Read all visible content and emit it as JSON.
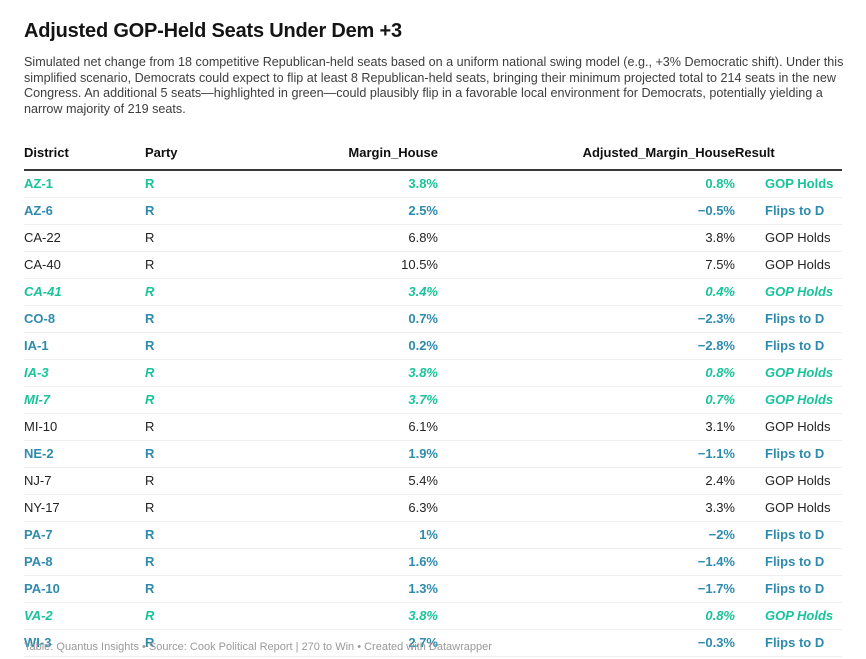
{
  "header": {
    "title": "Adjusted GOP-Held Seats Under Dem +3",
    "description": "Simulated net change from 18 competitive Republican-held seats based on a uniform national swing model (e.g., +3% Democratic shift). Under this simplified scenario, Democrats could expect to flip at least 8 Republican-held seats, bringing their minimum projected total to 214 seats in the new Congress. An additional 5 seats—highlighted in green—could plausibly flip in a favorable local environment for Democrats, potentially yielding a narrow majority of 219 seats."
  },
  "colors": {
    "green": "#18c39b",
    "blue": "#2e8bad",
    "plain_text": "#222222",
    "header_rule": "#393939",
    "row_divider": "#efefef",
    "footer_text": "#9a9a9a"
  },
  "table": {
    "columns": [
      {
        "label": "District",
        "align": "left"
      },
      {
        "label": "Party",
        "align": "left"
      },
      {
        "label": "Margin_House",
        "align": "right"
      },
      {
        "label": "Adjusted_Margin_House",
        "align": "right"
      },
      {
        "label": "Result",
        "align": "left"
      }
    ],
    "rows": [
      {
        "district": "AZ-1",
        "party": "R",
        "margin": "3.8%",
        "adjusted": "0.8%",
        "result": "GOP Holds",
        "style": "green"
      },
      {
        "district": "AZ-6",
        "party": "R",
        "margin": "2.5%",
        "adjusted": "−0.5%",
        "result": "Flips to D",
        "style": "blue"
      },
      {
        "district": "CA-22",
        "party": "R",
        "margin": "6.8%",
        "adjusted": "3.8%",
        "result": "GOP Holds",
        "style": "plain"
      },
      {
        "district": "CA-40",
        "party": "R",
        "margin": "10.5%",
        "adjusted": "7.5%",
        "result": "GOP Holds",
        "style": "plain"
      },
      {
        "district": "CA-41",
        "party": "R",
        "margin": "3.4%",
        "adjusted": "0.4%",
        "result": "GOP Holds",
        "style": "green-italic"
      },
      {
        "district": "CO-8",
        "party": "R",
        "margin": "0.7%",
        "adjusted": "−2.3%",
        "result": "Flips to D",
        "style": "blue"
      },
      {
        "district": "IA-1",
        "party": "R",
        "margin": "0.2%",
        "adjusted": "−2.8%",
        "result": "Flips to D",
        "style": "blue"
      },
      {
        "district": "IA-3",
        "party": "R",
        "margin": "3.8%",
        "adjusted": "0.8%",
        "result": "GOP Holds",
        "style": "green-italic"
      },
      {
        "district": "MI-7",
        "party": "R",
        "margin": "3.7%",
        "adjusted": "0.7%",
        "result": "GOP Holds",
        "style": "green-italic"
      },
      {
        "district": "MI-10",
        "party": "R",
        "margin": "6.1%",
        "adjusted": "3.1%",
        "result": "GOP Holds",
        "style": "plain"
      },
      {
        "district": "NE-2",
        "party": "R",
        "margin": "1.9%",
        "adjusted": "−1.1%",
        "result": "Flips to D",
        "style": "blue"
      },
      {
        "district": "NJ-7",
        "party": "R",
        "margin": "5.4%",
        "adjusted": "2.4%",
        "result": "GOP Holds",
        "style": "plain"
      },
      {
        "district": "NY-17",
        "party": "R",
        "margin": "6.3%",
        "adjusted": "3.3%",
        "result": "GOP Holds",
        "style": "plain"
      },
      {
        "district": "PA-7",
        "party": "R",
        "margin": "1%",
        "adjusted": "−2%",
        "result": "Flips to D",
        "style": "blue"
      },
      {
        "district": "PA-8",
        "party": "R",
        "margin": "1.6%",
        "adjusted": "−1.4%",
        "result": "Flips to D",
        "style": "blue"
      },
      {
        "district": "PA-10",
        "party": "R",
        "margin": "1.3%",
        "adjusted": "−1.7%",
        "result": "Flips to D",
        "style": "blue"
      },
      {
        "district": "VA-2",
        "party": "R",
        "margin": "3.8%",
        "adjusted": "0.8%",
        "result": "GOP Holds",
        "style": "green-italic"
      },
      {
        "district": "WI-3",
        "party": "R",
        "margin": "2.7%",
        "adjusted": "−0.3%",
        "result": "Flips to D",
        "style": "blue"
      }
    ]
  },
  "footer": {
    "text": "Table: Quantus Insights  • Source: Cook Political Report | 270 to Win • Created with Datawrapper"
  },
  "chart_data": {
    "type": "table",
    "title": "Adjusted GOP-Held Seats Under Dem +3",
    "columns": [
      "District",
      "Party",
      "Margin_House",
      "Adjusted_Margin_House",
      "Result"
    ],
    "rows": [
      [
        "AZ-1",
        "R",
        3.8,
        0.8,
        "GOP Holds"
      ],
      [
        "AZ-6",
        "R",
        2.5,
        -0.5,
        "Flips to D"
      ],
      [
        "CA-22",
        "R",
        6.8,
        3.8,
        "GOP Holds"
      ],
      [
        "CA-40",
        "R",
        10.5,
        7.5,
        "GOP Holds"
      ],
      [
        "CA-41",
        "R",
        3.4,
        0.4,
        "GOP Holds"
      ],
      [
        "CO-8",
        "R",
        0.7,
        -2.3,
        "Flips to D"
      ],
      [
        "IA-1",
        "R",
        0.2,
        -2.8,
        "Flips to D"
      ],
      [
        "IA-3",
        "R",
        3.8,
        0.8,
        "GOP Holds"
      ],
      [
        "MI-7",
        "R",
        3.7,
        0.7,
        "GOP Holds"
      ],
      [
        "MI-10",
        "R",
        6.1,
        3.1,
        "GOP Holds"
      ],
      [
        "NE-2",
        "R",
        1.9,
        -1.1,
        "Flips to D"
      ],
      [
        "NJ-7",
        "R",
        5.4,
        2.4,
        "GOP Holds"
      ],
      [
        "NY-17",
        "R",
        6.3,
        3.3,
        "GOP Holds"
      ],
      [
        "PA-7",
        "R",
        1.0,
        -2.0,
        "Flips to D"
      ],
      [
        "PA-8",
        "R",
        1.6,
        -1.4,
        "Flips to D"
      ],
      [
        "PA-10",
        "R",
        1.3,
        -1.7,
        "Flips to D"
      ],
      [
        "VA-2",
        "R",
        3.8,
        0.8,
        "GOP Holds"
      ],
      [
        "WI-3",
        "R",
        2.7,
        -0.3,
        "Flips to D"
      ]
    ],
    "row_highlight": {
      "green_plausible_flip": [
        "AZ-1",
        "CA-41",
        "IA-3",
        "MI-7",
        "VA-2"
      ],
      "blue_flips_to_d": [
        "AZ-6",
        "CO-8",
        "IA-1",
        "NE-2",
        "PA-7",
        "PA-8",
        "PA-10",
        "WI-3"
      ],
      "plain_gop_holds": [
        "CA-22",
        "CA-40",
        "MI-10",
        "NJ-7",
        "NY-17"
      ]
    },
    "units": "percent margin",
    "legend_position": "none",
    "grid": "row-dividers"
  }
}
